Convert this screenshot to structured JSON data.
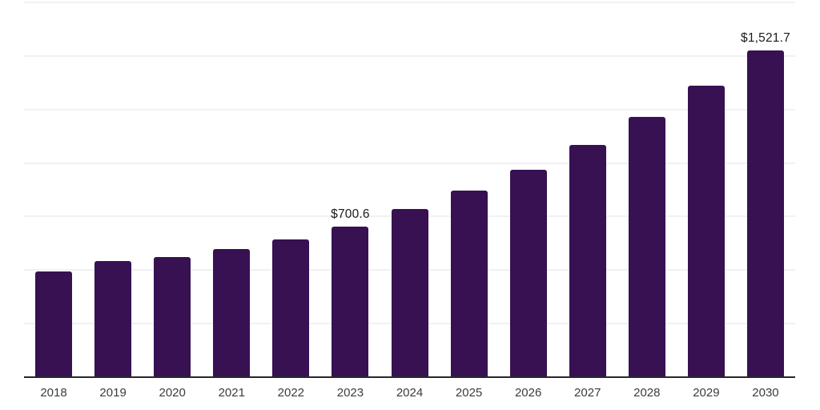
{
  "chart_data": {
    "type": "bar",
    "title": "",
    "xlabel": "",
    "ylabel": "",
    "categories": [
      "2018",
      "2019",
      "2020",
      "2021",
      "2022",
      "2023",
      "2024",
      "2025",
      "2026",
      "2027",
      "2028",
      "2029",
      "2030"
    ],
    "values": [
      490,
      539,
      557,
      594,
      638,
      700.6,
      780,
      866,
      966,
      1081,
      1213,
      1358,
      1521.7
    ],
    "ylim": [
      0,
      1750
    ],
    "gridline_interval": 250,
    "grid": "horizontal-only",
    "legend_position": "none",
    "y_tick_labels_shown": false,
    "data_labels": [
      {
        "category": "2023",
        "text": "$700.6"
      },
      {
        "category": "2030",
        "text": "$1,521.7"
      }
    ],
    "colors": {
      "bar": "#371152",
      "gridline": "#f1f1f3",
      "baseline": "#27272c",
      "tick_label": "#3c3c3c",
      "data_label": "#1c1c1c",
      "background": "#ffffff"
    }
  }
}
